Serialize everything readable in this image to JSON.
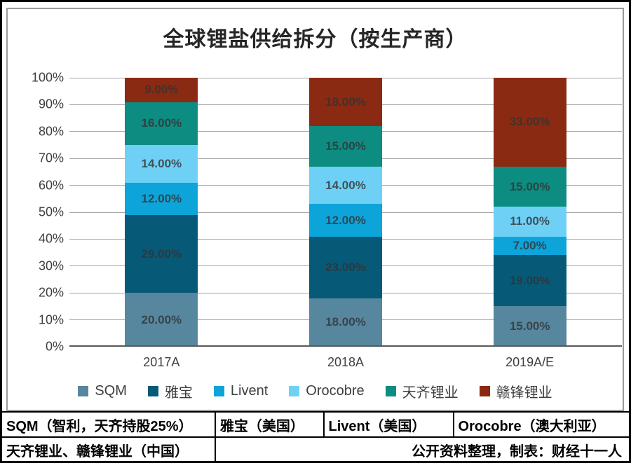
{
  "chart_data": {
    "type": "bar",
    "stacked": true,
    "title": "全球锂盐供给拆分（按生产商）",
    "categories": [
      "2017A",
      "2018A",
      "2019A/E"
    ],
    "series": [
      {
        "name": "SQM",
        "color": "#56879f",
        "values": [
          20,
          18,
          15
        ],
        "labels": [
          "20.00%",
          "18.00%",
          "15.00%"
        ]
      },
      {
        "name": "雅宝",
        "color": "#065a78",
        "values": [
          29,
          23,
          19
        ],
        "labels": [
          "29.00%",
          "23.00%",
          "19.00%"
        ]
      },
      {
        "name": "Livent",
        "color": "#0da4da",
        "values": [
          12,
          12,
          7
        ],
        "labels": [
          "12.00%",
          "12.00%",
          "7.00%"
        ]
      },
      {
        "name": "Orocobre",
        "color": "#6fd0f6",
        "values": [
          14,
          14,
          11
        ],
        "labels": [
          "14.00%",
          "14.00%",
          "11.00%"
        ]
      },
      {
        "name": "天齐锂业",
        "color": "#0d8c82",
        "values": [
          16,
          15,
          15
        ],
        "labels": [
          "16.00%",
          "15.00%",
          "15.00%"
        ]
      },
      {
        "name": "赣锋锂业",
        "color": "#8b2a12",
        "values": [
          9,
          18,
          33
        ],
        "labels": [
          "9.00%",
          "18.00%",
          "33.00%"
        ]
      }
    ],
    "y_axis": {
      "min": 0,
      "max": 100,
      "step": 10,
      "tick_labels": [
        "0%",
        "10%",
        "20%",
        "30%",
        "40%",
        "50%",
        "60%",
        "70%",
        "80%",
        "90%",
        "100%"
      ]
    },
    "grid": true,
    "legend_position": "bottom"
  },
  "footer_table": {
    "row1": [
      "SQM（智利，天齐持股25%）",
      "雅宝（美国）",
      "Livent（美国）",
      "Orocobre（澳大利亚）"
    ],
    "row2_left": "天齐锂业、赣锋锂业（中国）",
    "row2_right": "公开资料整理，制表：财经十一人"
  }
}
